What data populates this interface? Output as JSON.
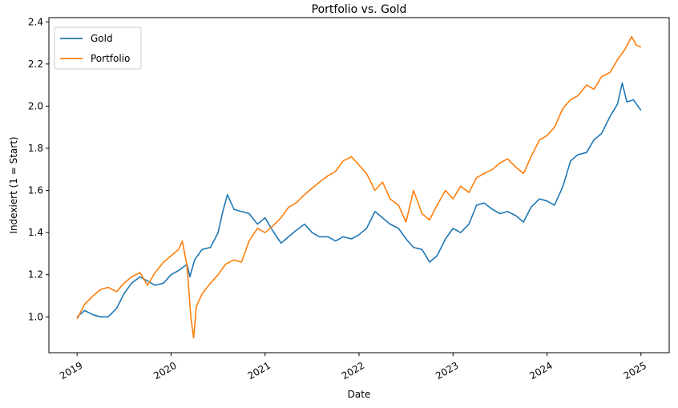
{
  "chart_data": {
    "type": "line",
    "title": "Portfolio vs. Gold",
    "xlabel": "Date",
    "ylabel": "Indexiert (1 = Start)",
    "x_ticks": [
      "2019",
      "2020",
      "2021",
      "2022",
      "2023",
      "2024",
      "2025"
    ],
    "y_ticks": [
      "1.0",
      "1.2",
      "1.4",
      "1.6",
      "1.8",
      "2.0",
      "2.2",
      "2.4"
    ],
    "xlim": [
      2018.7,
      2025.3
    ],
    "ylim": [
      0.83,
      2.42
    ],
    "grid": false,
    "legend_position": "upper-left",
    "series": [
      {
        "name": "Gold",
        "color": "#1f77b4",
        "points": [
          [
            2019.0,
            1.0
          ],
          [
            2019.08,
            1.03
          ],
          [
            2019.17,
            1.01
          ],
          [
            2019.25,
            1.0
          ],
          [
            2019.33,
            1.0
          ],
          [
            2019.42,
            1.04
          ],
          [
            2019.5,
            1.11
          ],
          [
            2019.58,
            1.16
          ],
          [
            2019.67,
            1.19
          ],
          [
            2019.75,
            1.17
          ],
          [
            2019.83,
            1.15
          ],
          [
            2019.92,
            1.16
          ],
          [
            2020.0,
            1.2
          ],
          [
            2020.08,
            1.22
          ],
          [
            2020.17,
            1.25
          ],
          [
            2020.2,
            1.19
          ],
          [
            2020.25,
            1.27
          ],
          [
            2020.33,
            1.32
          ],
          [
            2020.42,
            1.33
          ],
          [
            2020.5,
            1.4
          ],
          [
            2020.55,
            1.5
          ],
          [
            2020.6,
            1.58
          ],
          [
            2020.67,
            1.51
          ],
          [
            2020.75,
            1.5
          ],
          [
            2020.83,
            1.49
          ],
          [
            2020.92,
            1.44
          ],
          [
            2021.0,
            1.47
          ],
          [
            2021.08,
            1.41
          ],
          [
            2021.17,
            1.35
          ],
          [
            2021.25,
            1.38
          ],
          [
            2021.33,
            1.41
          ],
          [
            2021.42,
            1.44
          ],
          [
            2021.5,
            1.4
          ],
          [
            2021.58,
            1.38
          ],
          [
            2021.67,
            1.38
          ],
          [
            2021.75,
            1.36
          ],
          [
            2021.83,
            1.38
          ],
          [
            2021.92,
            1.37
          ],
          [
            2022.0,
            1.39
          ],
          [
            2022.08,
            1.42
          ],
          [
            2022.17,
            1.5
          ],
          [
            2022.25,
            1.47
          ],
          [
            2022.33,
            1.44
          ],
          [
            2022.42,
            1.42
          ],
          [
            2022.5,
            1.37
          ],
          [
            2022.58,
            1.33
          ],
          [
            2022.67,
            1.32
          ],
          [
            2022.75,
            1.26
          ],
          [
            2022.83,
            1.29
          ],
          [
            2022.92,
            1.37
          ],
          [
            2023.0,
            1.42
          ],
          [
            2023.08,
            1.4
          ],
          [
            2023.17,
            1.44
          ],
          [
            2023.25,
            1.53
          ],
          [
            2023.33,
            1.54
          ],
          [
            2023.42,
            1.51
          ],
          [
            2023.5,
            1.49
          ],
          [
            2023.58,
            1.5
          ],
          [
            2023.67,
            1.48
          ],
          [
            2023.75,
            1.45
          ],
          [
            2023.83,
            1.52
          ],
          [
            2023.92,
            1.56
          ],
          [
            2024.0,
            1.55
          ],
          [
            2024.08,
            1.53
          ],
          [
            2024.17,
            1.62
          ],
          [
            2024.25,
            1.74
          ],
          [
            2024.33,
            1.77
          ],
          [
            2024.42,
            1.78
          ],
          [
            2024.5,
            1.84
          ],
          [
            2024.58,
            1.87
          ],
          [
            2024.67,
            1.95
          ],
          [
            2024.75,
            2.01
          ],
          [
            2024.8,
            2.11
          ],
          [
            2024.85,
            2.02
          ],
          [
            2024.92,
            2.03
          ],
          [
            2025.0,
            1.98
          ]
        ]
      },
      {
        "name": "Portfolio",
        "color": "#ff7f0e",
        "points": [
          [
            2019.0,
            0.99
          ],
          [
            2019.08,
            1.06
          ],
          [
            2019.17,
            1.1
          ],
          [
            2019.25,
            1.13
          ],
          [
            2019.33,
            1.14
          ],
          [
            2019.42,
            1.12
          ],
          [
            2019.5,
            1.16
          ],
          [
            2019.58,
            1.19
          ],
          [
            2019.67,
            1.21
          ],
          [
            2019.75,
            1.15
          ],
          [
            2019.83,
            1.21
          ],
          [
            2019.92,
            1.26
          ],
          [
            2020.0,
            1.29
          ],
          [
            2020.08,
            1.32
          ],
          [
            2020.12,
            1.36
          ],
          [
            2020.17,
            1.24
          ],
          [
            2020.21,
            1.0
          ],
          [
            2020.24,
            0.9
          ],
          [
            2020.27,
            1.05
          ],
          [
            2020.33,
            1.11
          ],
          [
            2020.42,
            1.16
          ],
          [
            2020.5,
            1.2
          ],
          [
            2020.58,
            1.25
          ],
          [
            2020.67,
            1.27
          ],
          [
            2020.75,
            1.26
          ],
          [
            2020.83,
            1.36
          ],
          [
            2020.92,
            1.42
          ],
          [
            2021.0,
            1.4
          ],
          [
            2021.08,
            1.43
          ],
          [
            2021.17,
            1.47
          ],
          [
            2021.25,
            1.52
          ],
          [
            2021.33,
            1.54
          ],
          [
            2021.42,
            1.58
          ],
          [
            2021.5,
            1.61
          ],
          [
            2021.58,
            1.64
          ],
          [
            2021.67,
            1.67
          ],
          [
            2021.75,
            1.69
          ],
          [
            2021.83,
            1.74
          ],
          [
            2021.92,
            1.76
          ],
          [
            2022.0,
            1.72
          ],
          [
            2022.08,
            1.68
          ],
          [
            2022.17,
            1.6
          ],
          [
            2022.25,
            1.64
          ],
          [
            2022.33,
            1.56
          ],
          [
            2022.42,
            1.53
          ],
          [
            2022.5,
            1.45
          ],
          [
            2022.58,
            1.6
          ],
          [
            2022.67,
            1.49
          ],
          [
            2022.75,
            1.46
          ],
          [
            2022.83,
            1.53
          ],
          [
            2022.92,
            1.6
          ],
          [
            2023.0,
            1.56
          ],
          [
            2023.08,
            1.62
          ],
          [
            2023.17,
            1.59
          ],
          [
            2023.25,
            1.66
          ],
          [
            2023.33,
            1.68
          ],
          [
            2023.42,
            1.7
          ],
          [
            2023.5,
            1.73
          ],
          [
            2023.58,
            1.75
          ],
          [
            2023.67,
            1.71
          ],
          [
            2023.75,
            1.68
          ],
          [
            2023.83,
            1.76
          ],
          [
            2023.92,
            1.84
          ],
          [
            2024.0,
            1.86
          ],
          [
            2024.08,
            1.9
          ],
          [
            2024.17,
            1.99
          ],
          [
            2024.25,
            2.03
          ],
          [
            2024.33,
            2.05
          ],
          [
            2024.42,
            2.1
          ],
          [
            2024.5,
            2.08
          ],
          [
            2024.58,
            2.14
          ],
          [
            2024.67,
            2.16
          ],
          [
            2024.75,
            2.22
          ],
          [
            2024.83,
            2.27
          ],
          [
            2024.9,
            2.33
          ],
          [
            2024.95,
            2.29
          ],
          [
            2025.0,
            2.28
          ]
        ]
      }
    ]
  }
}
